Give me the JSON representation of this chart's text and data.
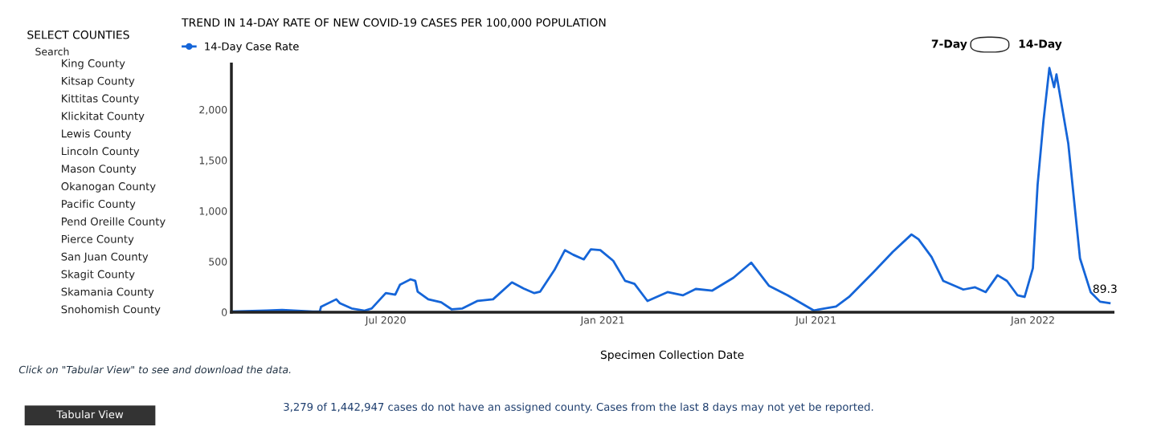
{
  "chart_data": [
    {
      "type": "other",
      "title": "SELECT COUNTIES",
      "annotations": [
        "Search",
        "King County",
        "Kitsap County",
        "Kittitas County",
        "Klickitat County",
        "Lewis County",
        "Lincoln County",
        "Mason County",
        "Okanogan County",
        "Pacific County",
        "Pend Oreille County",
        "Pierce County",
        "San Juan County",
        "Skagit County",
        "Skamania County",
        "Snohomish County",
        "Click on \"Tabular View\" to see and download the data.",
        "Tabular View"
      ]
    },
    {
      "type": "line",
      "title": "TREND IN 14-DAY RATE OF NEW COVID-19 CASES PER 100,000 POPULATION",
      "xlabel": "Specimen Collection Date",
      "legend": "top left",
      "marker": "none",
      "line_style": "solid",
      "grid": false,
      "xlim": [
        "2020-02-21",
        "2022-03-10"
      ],
      "xticks": [
        {
          "value": "2020-07-01",
          "label": "Jul 2020"
        },
        {
          "value": "2021-01-01",
          "label": "Jan 2021"
        },
        {
          "value": "2021-07-01",
          "label": "Jul 2021"
        },
        {
          "value": "2022-01-01",
          "label": "Jan 2022"
        }
      ],
      "ylim": [
        0,
        2450
      ],
      "yticks": [
        0,
        {
          "value": 500,
          "label": "500"
        },
        {
          "value": 1000,
          "label": "1,000"
        },
        {
          "value": 1500,
          "label": "1,500"
        },
        {
          "value": 2000,
          "label": "2,000"
        }
      ],
      "annotations": [
        "7-Day",
        "14-Day",
        {
          "text": "89.3",
          "x": "2022-03-07",
          "y": 89.3
        },
        "3,279 of 1,442,947 cases do not have an assigned county. Cases from the last 8 days may not yet be reported."
      ],
      "series": [
        {
          "name": "14-Day Case Rate",
          "color": "#1565d8",
          "x": [
            "2020-02-21",
            "2020-03-22",
            "2020-04-04",
            "2020-04-30",
            "2020-05-06",
            "2020-05-07",
            "2020-05-20",
            "2020-05-23",
            "2020-06-02",
            "2020-06-13",
            "2020-06-19",
            "2020-07-01",
            "2020-07-09",
            "2020-07-13",
            "2020-07-22",
            "2020-07-26",
            "2020-07-28",
            "2020-08-06",
            "2020-08-17",
            "2020-08-26",
            "2020-09-04",
            "2020-09-17",
            "2020-09-30",
            "2020-10-16",
            "2020-10-26",
            "2020-11-04",
            "2020-11-09",
            "2020-11-21",
            "2020-11-30",
            "2020-12-07",
            "2020-12-16",
            "2020-12-22",
            "2020-12-30",
            "2021-01-10",
            "2021-01-20",
            "2021-01-28",
            "2021-02-08",
            "2021-02-25",
            "2021-03-10",
            "2021-03-21",
            "2021-04-04",
            "2021-04-22",
            "2021-05-07",
            "2021-05-22",
            "2021-06-07",
            "2021-06-29",
            "2021-07-18",
            "2021-07-29",
            "2021-08-19",
            "2021-09-04",
            "2021-09-20",
            "2021-09-26",
            "2021-10-07",
            "2021-10-17",
            "2021-11-03",
            "2021-11-13",
            "2021-11-22",
            "2021-12-02",
            "2021-12-10",
            "2021-12-19",
            "2021-12-25",
            "2022-01-01",
            "2022-01-05",
            "2022-01-10",
            "2022-01-15",
            "2022-01-19",
            "2022-01-21",
            "2022-01-31",
            "2022-02-05",
            "2022-02-10",
            "2022-02-19",
            "2022-02-27",
            "2022-03-07"
          ],
          "values": [
            6,
            15,
            21,
            6,
            6,
            52,
            127,
            88,
            36,
            15,
            36,
            188,
            173,
            270,
            324,
            309,
            203,
            127,
            97,
            27,
            36,
            112,
            127,
            294,
            233,
            188,
            203,
            415,
            612,
            567,
            521,
            621,
            612,
            506,
            309,
            279,
            110,
            198,
            166,
            229,
            213,
            340,
            489,
            261,
            166,
            17,
            55,
            150,
            397,
            593,
            767,
            719,
            545,
            308,
            223,
            245,
            198,
            365,
            308,
            166,
            150,
            435,
            1257,
            1890,
            2411,
            2221,
            2348,
            1668,
            1099,
            530,
            198,
            103,
            89.3
          ]
        }
      ]
    }
  ]
}
